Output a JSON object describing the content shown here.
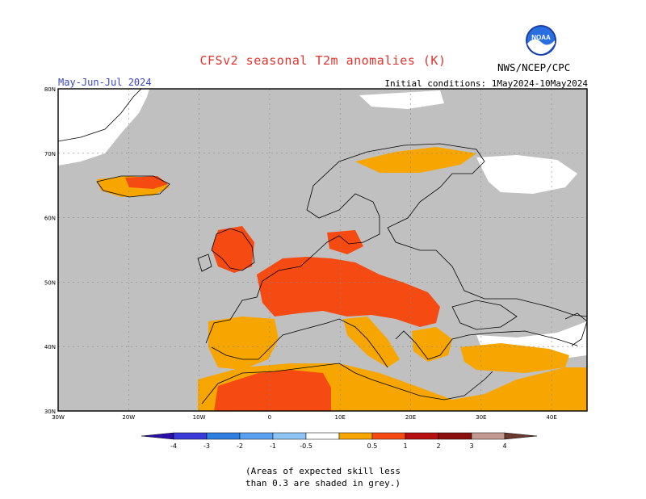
{
  "header": {
    "title": "CFSv2 seasonal T2m anomalies (K)",
    "title_color": "#e0332c",
    "period": "May-Jun-Jul 2024",
    "period_color": "#3a46c8",
    "initial_conditions": "Initial conditions: 1May2024-10May2024",
    "agency": "NWS/NCEP/CPC",
    "logo_text": "NOAA"
  },
  "map": {
    "lat_labels": [
      "80N",
      "70N",
      "60N",
      "50N",
      "40N",
      "30N"
    ],
    "lon_labels": [
      "30W",
      "20W",
      "10W",
      "0",
      "10E",
      "20E",
      "30E",
      "40E"
    ],
    "land_grey": "#c0c0c0",
    "coast_color": "#000000"
  },
  "legend": {
    "labels": [
      "-4",
      "-3",
      "-2",
      "-1",
      "-0.5",
      "0.5",
      "1",
      "2",
      "3",
      "4"
    ],
    "colors": [
      "#2a0fa8",
      "#3a3ad8",
      "#2f7fe0",
      "#5aa0f0",
      "#8ec4f4",
      "#ffffff",
      "#f7a500",
      "#f54a12",
      "#b70f10",
      "#8a1010",
      "#c39a90",
      "#6a3a30"
    ]
  },
  "note": {
    "line1": "(Areas of expected skill less",
    "line2": "than 0.3 are shaded in grey.)"
  }
}
